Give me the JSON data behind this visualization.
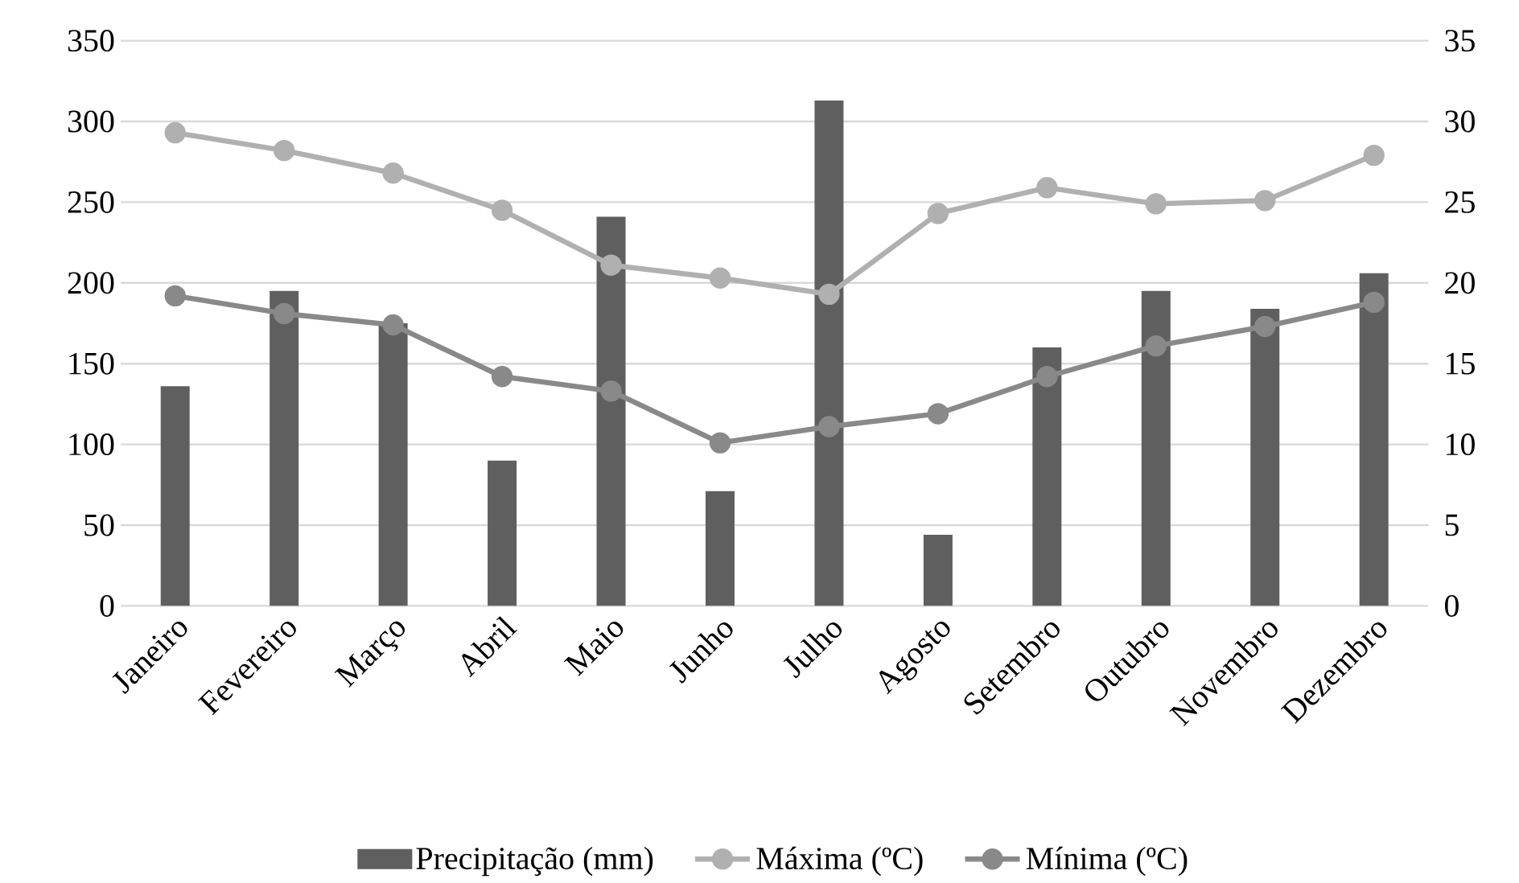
{
  "chart_data": {
    "type": "bar",
    "categories": [
      "Janeiro",
      "Fevereiro",
      "Março",
      "Abril",
      "Maio",
      "Junho",
      "Julho",
      "Agosto",
      "Setembro",
      "Outubro",
      "Novembro",
      "Dezembro"
    ],
    "series": [
      {
        "name": "Precipitação (mm)",
        "color": "#5f5f5f",
        "values": [
          136,
          195,
          175,
          90,
          241,
          71,
          313,
          44,
          160,
          195,
          184,
          206
        ]
      },
      {
        "name": "Máxima (ºC)",
        "type": "line",
        "axis": "y2",
        "color": "#b0b0b0",
        "values": [
          29.3,
          28.2,
          26.8,
          24.5,
          21.1,
          20.3,
          19.3,
          24.3,
          25.9,
          24.9,
          25.1,
          27.9
        ]
      },
      {
        "name": "Mínima (ºC)",
        "type": "line",
        "axis": "y2",
        "color": "#898989",
        "values": [
          19.2,
          18.1,
          17.4,
          14.2,
          13.3,
          10.1,
          11.1,
          11.9,
          14.2,
          16.1,
          17.3,
          18.8
        ]
      }
    ],
    "ylim": [
      0,
      350
    ],
    "yticks": [
      0,
      50,
      100,
      150,
      200,
      250,
      300,
      350
    ],
    "y2lim": [
      0,
      35
    ],
    "y2ticks": [
      0,
      5,
      10,
      15,
      20,
      25,
      30,
      35
    ],
    "grid": "y",
    "legend": "bottom",
    "marker": "circle"
  }
}
